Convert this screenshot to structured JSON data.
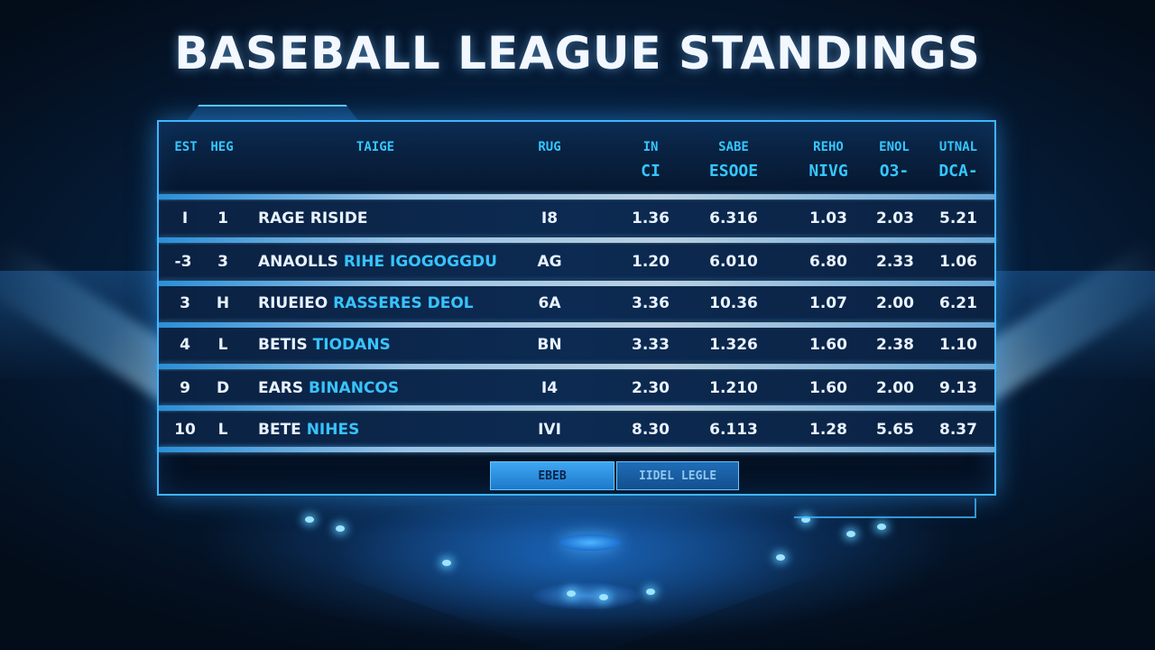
{
  "title": "BASEBALL LEAGUE STANDINGS",
  "header": {
    "col1": "EST",
    "col2": "HEG",
    "col3": "TAIGE",
    "col4": "RUG",
    "col5_top": "IN",
    "col5_sub": "CI",
    "col6_top": "SABE",
    "col6_sub": "ESOOE",
    "col7_top": "REHO",
    "col7_sub": "NIVG",
    "col8_top": "ENOL",
    "col8_sub": "O3-",
    "col9_top": "UTNAL",
    "col9_sub": "DCA-"
  },
  "rows": [
    {
      "rank": "I",
      "pos": "1",
      "team_a": "RAGE RISIDE",
      "team_b": "",
      "c4": "I8",
      "c5": "1.36",
      "c6": "6.316",
      "c7": "1.03",
      "c8": "2.03",
      "c9": "5.21"
    },
    {
      "rank": "-3",
      "pos": "3",
      "team_a": "ANAOLLS",
      "team_b": "RIHE IGOGOGGDU",
      "c4": "AG",
      "c5": "1.20",
      "c6": "6.010",
      "c7": "6.80",
      "c8": "2.33",
      "c9": "1.06"
    },
    {
      "rank": "3",
      "pos": "H",
      "team_a": "RIUEIEO",
      "team_b": "RASSERES DEOL",
      "c4": "6A",
      "c5": "3.36",
      "c6": "10.36",
      "c7": "1.07",
      "c8": "2.00",
      "c9": "6.21"
    },
    {
      "rank": "4",
      "pos": "L",
      "team_a": "BETIS",
      "team_b": "TIODANS",
      "c4": "BN",
      "c5": "3.33",
      "c6": "1.326",
      "c7": "1.60",
      "c8": "2.38",
      "c9": "1.10"
    },
    {
      "rank": "9",
      "pos": "D",
      "team_a": "EARS",
      "team_b": "BINANCOS",
      "c4": "I4",
      "c5": "2.30",
      "c6": "1.210",
      "c7": "1.60",
      "c8": "2.00",
      "c9": "9.13"
    },
    {
      "rank": "10",
      "pos": "L",
      "team_a": "BETE",
      "team_b": "NIHES",
      "c4": "IVI",
      "c5": "8.30",
      "c6": "6.113",
      "c7": "1.28",
      "c8": "5.65",
      "c9": "8.37"
    }
  ],
  "buttons": {
    "primary": "EBEB",
    "secondary": "IIDEL LEGLE"
  },
  "colors": {
    "accent": "#35c7ff",
    "panel_border": "#3fb6ff",
    "background": "#04101f"
  }
}
